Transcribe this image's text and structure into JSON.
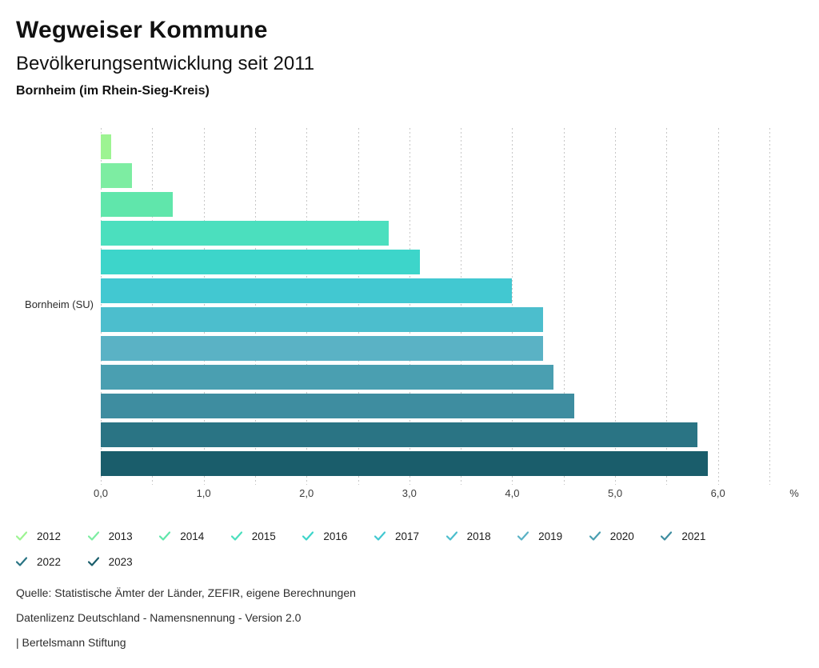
{
  "header": {
    "title": "Wegweiser Kommune",
    "subtitle": "Bevölkerungsentwicklung seit 2011",
    "region": "Bornheim (im Rhein-Sieg-Kreis)"
  },
  "chart_data": {
    "type": "bar",
    "orientation": "horizontal",
    "title": "Bevölkerungsentwicklung seit 2011",
    "group_label": "Bornheim (SU)",
    "categories": [
      "2012",
      "2013",
      "2014",
      "2015",
      "2016",
      "2017",
      "2018",
      "2019",
      "2020",
      "2021",
      "2022",
      "2023"
    ],
    "values": [
      0.1,
      0.3,
      0.7,
      2.8,
      3.1,
      4.0,
      4.3,
      4.3,
      4.4,
      4.6,
      5.8,
      5.9
    ],
    "colors": [
      "#9df492",
      "#7deda2",
      "#60e6ab",
      "#4bdfbe",
      "#3dd5ca",
      "#42c8d1",
      "#4cbecd",
      "#5ab2c5",
      "#4a9fb1",
      "#3e8da0",
      "#2a7484",
      "#1a5d6b"
    ],
    "xlabel": "%",
    "x_ticks": [
      "0,0",
      "1,0",
      "2,0",
      "3,0",
      "4,0",
      "5,0",
      "6,0"
    ],
    "xlim": [
      0,
      6.5
    ],
    "grid_step": 0.5,
    "grid_style": "dotted-vertical",
    "legend_position": "bottom",
    "legend_icon": "check-icon"
  },
  "footer": {
    "source": "Quelle: Statistische Ämter der Länder, ZEFIR, eigene Berechnungen",
    "license": "Datenlizenz Deutschland - Namensnennung - Version 2.0",
    "attribution": "| Bertelsmann Stiftung"
  }
}
